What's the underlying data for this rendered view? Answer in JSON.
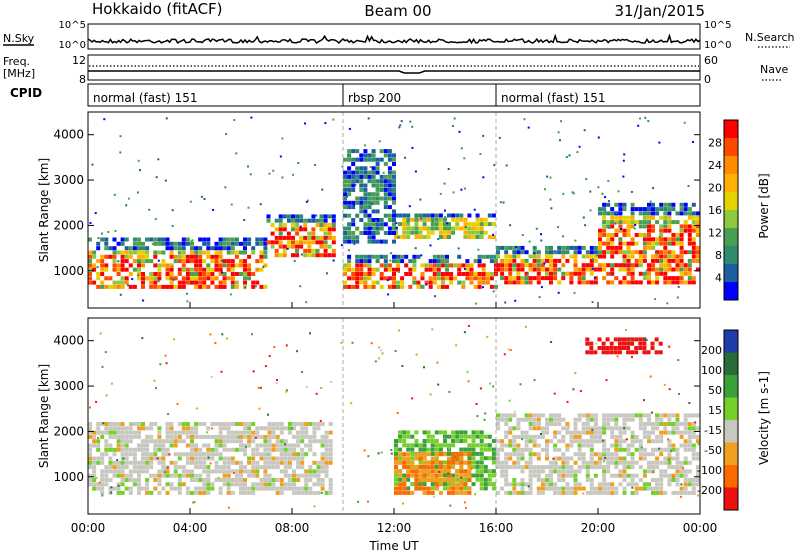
{
  "header": {
    "left": "Hokkaido (fitACF)",
    "center": "Beam 00",
    "right": "31/Jan/2015"
  },
  "time_axis": {
    "ticks": [
      "00:00",
      "04:00",
      "08:00",
      "12:00",
      "16:00",
      "20:00",
      "00:00"
    ],
    "label": "Time UT"
  },
  "nsky_panel": {
    "label": "N.Sky",
    "left_ticks": [
      "10^5",
      "10^0"
    ],
    "right_ticks": [
      "10^5",
      "10^0"
    ],
    "right_label": "N.Search"
  },
  "freq_panel": {
    "label_line1": "Freq.",
    "label_line2": "[MHz]",
    "left_ticks": [
      "12",
      "8"
    ],
    "right_ticks": [
      "60",
      "0"
    ],
    "right_label": "Nave"
  },
  "cpid_panel": {
    "label": "CPID",
    "segments": [
      {
        "label": "normal (fast) 151",
        "start_h": 0,
        "end_h": 10
      },
      {
        "label": "rbsp 200",
        "start_h": 10,
        "end_h": 16
      },
      {
        "label": "normal (fast) 151",
        "start_h": 16,
        "end_h": 24
      }
    ]
  },
  "power_scale": {
    "label": "Power [dB]",
    "ticks": [
      "28",
      "24",
      "20",
      "16",
      "12",
      "8",
      "4"
    ],
    "colors": [
      "#ff0000",
      "#ff4800",
      "#ff8c00",
      "#ffb000",
      "#e6d200",
      "#8ec83c",
      "#4aa050",
      "#2e8b6e",
      "#1d5fa0",
      "#0000ff"
    ]
  },
  "velocity_scale": {
    "label": "Velocity [m s-1]",
    "ticks": [
      "200",
      "100",
      "50",
      "15",
      "-15",
      "-50",
      "-100",
      "-200"
    ],
    "colors": [
      "#1e3caa",
      "#2a6b3a",
      "#3aa03a",
      "#74d02a",
      "#c8c8c0",
      "#f0a020",
      "#ff6a00",
      "#ee1111"
    ]
  },
  "chart_data": [
    {
      "type": "heatmap",
      "name": "power",
      "ylabel": "Slant Range [km]",
      "xlabel": "Time UT",
      "xlim": [
        0,
        24
      ],
      "ylim": [
        180,
        4500
      ],
      "yticks": [
        1000,
        2000,
        3000,
        4000
      ],
      "colorbar": {
        "label": "Power [dB]",
        "range": [
          0,
          30
        ]
      },
      "bands": [
        {
          "t": [
            0,
            7.0
          ],
          "r": [
            600,
            1650
          ],
          "level": "high"
        },
        {
          "t": [
            7.0,
            9.6
          ],
          "r": [
            1300,
            2200
          ],
          "level": "high"
        },
        {
          "t": [
            10.0,
            16.0
          ],
          "r": [
            600,
            1300
          ],
          "level": "high"
        },
        {
          "t": [
            12.0,
            16.0
          ],
          "r": [
            1700,
            2200
          ],
          "level": "medium"
        },
        {
          "t": [
            16.0,
            20.0
          ],
          "r": [
            700,
            1500
          ],
          "level": "high"
        },
        {
          "t": [
            20.0,
            24.0
          ],
          "r": [
            700,
            2500
          ],
          "level": "high"
        },
        {
          "t": [
            10.0,
            12.0
          ],
          "r": [
            1600,
            3600
          ],
          "level": "low"
        }
      ]
    },
    {
      "type": "heatmap",
      "name": "velocity",
      "ylabel": "Slant Range [km]",
      "xlabel": "Time UT",
      "xlim": [
        0,
        24
      ],
      "ylim": [
        180,
        4500
      ],
      "yticks": [
        1000,
        2000,
        3000,
        4000
      ],
      "colorbar": {
        "label": "Velocity [m s-1]",
        "range": [
          -200,
          200
        ]
      },
      "bands": [
        {
          "t": [
            0,
            9.5
          ],
          "r": [
            600,
            2200
          ],
          "v": 0
        },
        {
          "t": [
            12.0,
            16.0
          ],
          "r": [
            700,
            2000
          ],
          "v": 50
        },
        {
          "t": [
            12.0,
            15.0
          ],
          "r": [
            600,
            1500
          ],
          "v": -50
        },
        {
          "t": [
            16.0,
            24.0
          ],
          "r": [
            600,
            2400
          ],
          "v": 0
        },
        {
          "t": [
            19.5,
            22.5
          ],
          "r": [
            3700,
            4000
          ],
          "v": -200
        }
      ]
    }
  ]
}
